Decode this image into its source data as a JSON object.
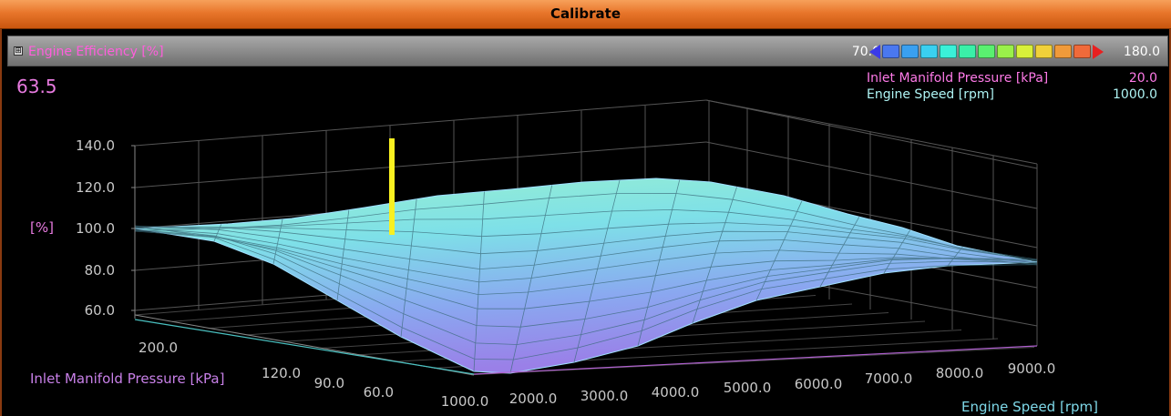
{
  "window": {
    "title": "Calibrate"
  },
  "map": {
    "title": "Engine Efficiency [%]",
    "current_value": "63.5",
    "expand_icon": "expand-icon",
    "scale": {
      "min": "70.0",
      "max": "180.0",
      "colors": [
        "#3a3ae8",
        "#4a78f0",
        "#3aa0f0",
        "#3ad0f0",
        "#3af0d8",
        "#3af0a8",
        "#5af070",
        "#9af04a",
        "#d8f03a",
        "#f0d03a",
        "#f09a3a",
        "#f06a3a",
        "#e82020"
      ]
    }
  },
  "readouts": [
    {
      "label": "Inlet Manifold Pressure [kPa]",
      "value": "20.0"
    },
    {
      "label": "Engine Speed [rpm]",
      "value": "1000.0"
    }
  ],
  "chart_data": {
    "type": "surface",
    "zlabel": "[%]",
    "z_ticks": [
      "140.0",
      "120.0",
      "100.0",
      "80.0",
      "60.0"
    ],
    "y_label": "Inlet Manifold Pressure [kPa]",
    "y_ticks": [
      "200.0",
      "120.0",
      "90.0",
      "60.0"
    ],
    "x_label": "Engine Speed [rpm]",
    "x_ticks": [
      "1000.0",
      "2000.0",
      "3000.0",
      "4000.0",
      "5000.0",
      "6000.0",
      "7000.0",
      "8000.0",
      "9000.0"
    ]
  }
}
